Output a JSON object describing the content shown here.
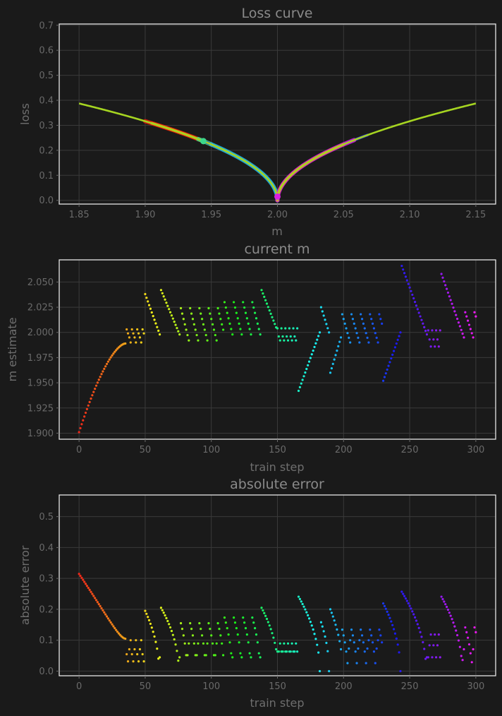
{
  "chart_data": [
    {
      "type": "line",
      "title": "Loss curve",
      "xlabel": "m",
      "ylabel": "loss",
      "xlim": [
        1.835,
        2.165
      ],
      "ylim": [
        -0.015,
        0.705
      ],
      "xticks": [
        "1.85",
        "1.90",
        "1.95",
        "2.00",
        "2.05",
        "2.10",
        "2.15"
      ],
      "yticks": [
        "0.0",
        "0.1",
        "0.2",
        "0.3",
        "0.4",
        "0.5",
        "0.6",
        "0.7"
      ],
      "grid": true,
      "curve": {
        "x_range": [
          1.85,
          2.15
        ],
        "formula": "sqrt(|m - 2|)",
        "color": "#a6d521"
      },
      "trajectories": [
        {
          "x_range": [
            1.9,
            1.945
          ],
          "color": "#dd1a0c"
        },
        {
          "x_range": [
            1.905,
            1.945
          ],
          "color": "#f09a12"
        },
        {
          "x_range": [
            1.94,
            1.95
          ],
          "color": "#3cd68c"
        },
        {
          "x_range": [
            1.945,
            2.0
          ],
          "color": "#2a3ae0"
        },
        {
          "x_range": [
            1.95,
            2.0
          ],
          "color": "#20b4e0"
        },
        {
          "x_range": [
            2.0,
            2.068
          ],
          "color": "#2a3ae0"
        },
        {
          "x_range": [
            2.0,
            2.058
          ],
          "color": "#c81ed8"
        },
        {
          "x_range": [
            2.0,
            2.05
          ],
          "color": "#f08a40"
        }
      ],
      "marker": {
        "x": 2.0,
        "y": 0.015,
        "color": "#d81ee0"
      }
    },
    {
      "type": "scatter",
      "title": "current m",
      "xlabel": "train step",
      "ylabel": "m estimate",
      "xlim": [
        -15,
        315
      ],
      "ylim": [
        1.894,
        2.072
      ],
      "xticks": [
        "0",
        "50",
        "100",
        "150",
        "200",
        "250",
        "300"
      ],
      "yticks": [
        "1.900",
        "1.925",
        "1.950",
        "1.975",
        "2.000",
        "2.025",
        "2.050"
      ],
      "grid": true,
      "color_map": "step coloured red → orange → yellow → green → cyan → blue → purple → magenta",
      "segments": [
        {
          "steps": [
            0,
            35
          ],
          "start": 1.901,
          "end": 1.989,
          "shape": "ease-out"
        },
        {
          "steps": [
            36,
            49
          ],
          "pattern": "cluster",
          "levels": [
            2.003,
            1.999,
            1.995,
            1.99
          ]
        },
        {
          "steps": [
            50,
            61
          ],
          "start": 2.038,
          "end": 1.998,
          "shape": "linear"
        },
        {
          "steps": [
            62,
            76
          ],
          "start": 2.042,
          "end": 1.998,
          "shape": "linear"
        },
        {
          "steps": [
            77,
            109
          ],
          "pattern": "sawtooth",
          "high": 2.024,
          "low": 1.992
        },
        {
          "steps": [
            110,
            137
          ],
          "pattern": "sawtooth",
          "high": 2.03,
          "low": 1.998
        },
        {
          "steps": [
            138,
            149
          ],
          "start": 2.042,
          "end": 2.005,
          "shape": "linear"
        },
        {
          "steps": [
            150,
            165
          ],
          "pattern": "cluster",
          "levels": [
            2.004,
            1.996,
            1.992
          ]
        },
        {
          "steps": [
            166,
            182
          ],
          "start": 1.942,
          "end": 2.0,
          "shape": "linear"
        },
        {
          "steps": [
            183,
            189
          ],
          "start": 2.025,
          "end": 2.0,
          "shape": "linear"
        },
        {
          "steps": [
            190,
            198
          ],
          "start": 1.96,
          "end": 1.995,
          "shape": "linear"
        },
        {
          "steps": [
            199,
            229
          ],
          "pattern": "sawtooth",
          "high": 2.018,
          "low": 1.99
        },
        {
          "steps": [
            230,
            243
          ],
          "start": 1.952,
          "end": 2.0,
          "shape": "linear"
        },
        {
          "steps": [
            244,
            263
          ],
          "start": 2.066,
          "end": 1.998,
          "shape": "linear"
        },
        {
          "steps": [
            264,
            273
          ],
          "pattern": "cluster",
          "levels": [
            2.002,
            1.993,
            1.986
          ]
        },
        {
          "steps": [
            274,
            291
          ],
          "start": 2.058,
          "end": 1.995,
          "shape": "linear"
        },
        {
          "steps": [
            292,
            300
          ],
          "pattern": "sawtooth",
          "high": 2.02,
          "low": 1.995
        }
      ],
      "target": 2.0
    },
    {
      "type": "scatter",
      "title": "absolute error",
      "xlabel": "train step",
      "ylabel": "absolute error",
      "xlim": [
        -15,
        315
      ],
      "ylim": [
        -0.015,
        0.57
      ],
      "xticks": [
        "0",
        "50",
        "100",
        "150",
        "200",
        "250",
        "300"
      ],
      "yticks": [
        "0.0",
        "0.1",
        "0.2",
        "0.3",
        "0.4",
        "0.5"
      ],
      "grid": true,
      "derived_from": "sqrt(|m estimate - 2|)"
    }
  ]
}
